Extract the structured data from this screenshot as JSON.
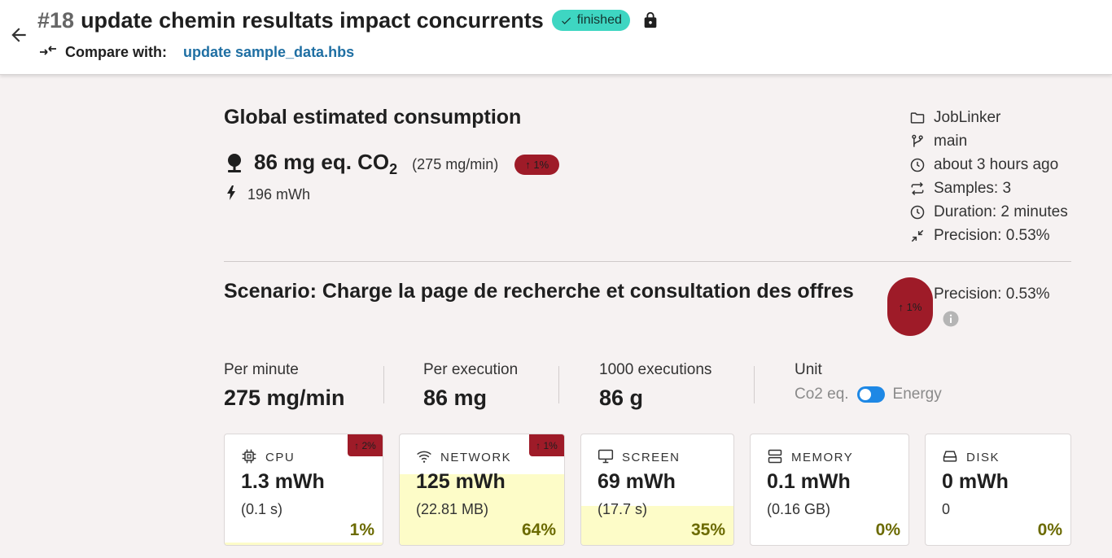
{
  "header": {
    "run_number": "#18",
    "title": "update chemin resultats impact concurrents",
    "status": "finished",
    "compare_label": "Compare with:",
    "compare_link": "update sample_data.hbs"
  },
  "global": {
    "title": "Global estimated consumption",
    "co2_value": "86 mg eq. CO",
    "co2_sub": "2",
    "co2_rate": "(275 mg/min)",
    "change": "↑ 1%",
    "energy": "196 mWh"
  },
  "meta": {
    "project": "JobLinker",
    "branch": "main",
    "time": "about 3 hours ago",
    "samples": "Samples: 3",
    "duration": "Duration: 2 minutes",
    "precision": "Precision: 0.53%"
  },
  "scenario": {
    "title": "Scenario: Charge la page de recherche et consultation des offres",
    "change": "↑ 1%",
    "precision": "Precision: 0.53%"
  },
  "stats": {
    "per_minute_label": "Per minute",
    "per_minute_value": "275 mg/min",
    "per_execution_label": "Per execution",
    "per_execution_value": "86 mg",
    "thousand_label": "1000 executions",
    "thousand_value": "86 g",
    "unit_label": "Unit",
    "unit_left": "Co2 eq.",
    "unit_right": "Energy"
  },
  "cards": {
    "cpu": {
      "label": "CPU",
      "value": "1.3 mWh",
      "sub": "(0.1 s)",
      "pct": "1%",
      "share": 0.01,
      "badge": "↑ 2%",
      "icon": "cpu-icon"
    },
    "network": {
      "label": "NETWORK",
      "value": "125 mWh",
      "sub": "(22.81 MB)",
      "pct": "64%",
      "share": 0.64,
      "badge": "↑ 1%",
      "icon": "wifi-icon"
    },
    "screen": {
      "label": "SCREEN",
      "value": "69 mWh",
      "sub": "(17.7 s)",
      "pct": "35%",
      "share": 0.35,
      "icon": "monitor-icon"
    },
    "memory": {
      "label": "MEMORY",
      "value": "0.1 mWh",
      "sub": "(0.16 GB)",
      "pct": "0%",
      "share": 0,
      "icon": "memory-icon"
    },
    "disk": {
      "label": "DISK",
      "value": "0 mWh",
      "sub": "0",
      "pct": "0%",
      "share": 0,
      "icon": "disk-icon"
    }
  },
  "colors": {
    "accent": "#1e88e5",
    "status_finished": "#3ed6c2",
    "increase_badge": "#9e1b28",
    "link": "#1f6fa3",
    "share_fill": "#fdfcc8"
  }
}
